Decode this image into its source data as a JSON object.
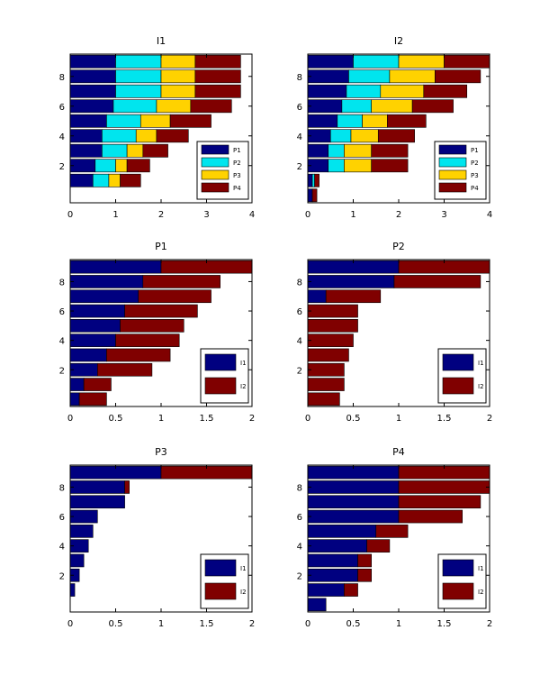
{
  "colors": {
    "P1": "#000080",
    "P2": "#00e5ee",
    "P3": "#ffd200",
    "P4": "#800000",
    "I1": "#000080",
    "I2": "#800000"
  },
  "chart_data": [
    {
      "type": "bar",
      "orientation": "horizontal",
      "stacked": true,
      "title": "I1",
      "categories": [
        0,
        1,
        2,
        3,
        4,
        5,
        6,
        7,
        8,
        9
      ],
      "series": [
        {
          "name": "P1",
          "values": [
            0.0,
            0.5,
            0.55,
            0.7,
            0.7,
            0.8,
            0.95,
            1.0,
            1.0,
            1.0
          ]
        },
        {
          "name": "P2",
          "values": [
            0.0,
            0.35,
            0.45,
            0.55,
            0.75,
            0.75,
            0.95,
            1.0,
            1.0,
            1.0
          ]
        },
        {
          "name": "P3",
          "values": [
            0.0,
            0.25,
            0.25,
            0.35,
            0.45,
            0.65,
            0.75,
            0.75,
            0.75,
            0.75
          ]
        },
        {
          "name": "P4",
          "values": [
            0.0,
            0.45,
            0.5,
            0.55,
            0.7,
            0.9,
            0.9,
            1.0,
            1.0,
            1.0
          ]
        }
      ],
      "xlim": [
        0,
        4
      ],
      "xticks": [
        "0",
        "1",
        "2",
        "3",
        "4"
      ],
      "ylim": [
        -0.5,
        9.5
      ],
      "yticks": [
        "2",
        "4",
        "6",
        "8"
      ],
      "legend": {
        "position": "bottom-right",
        "entries": [
          "P1",
          "P2",
          "P3",
          "P4"
        ]
      }
    },
    {
      "type": "bar",
      "orientation": "horizontal",
      "stacked": true,
      "title": "I2",
      "categories": [
        0,
        1,
        2,
        3,
        4,
        5,
        6,
        7,
        8,
        9
      ],
      "series": [
        {
          "name": "P1",
          "values": [
            0.1,
            0.1,
            0.45,
            0.45,
            0.5,
            0.65,
            0.75,
            0.85,
            0.9,
            1.0
          ]
        },
        {
          "name": "P2",
          "values": [
            0.0,
            0.05,
            0.35,
            0.35,
            0.45,
            0.55,
            0.65,
            0.75,
            0.9,
            1.0
          ]
        },
        {
          "name": "P3",
          "values": [
            0.0,
            0.0,
            0.6,
            0.6,
            0.6,
            0.55,
            0.9,
            0.95,
            1.0,
            1.0
          ]
        },
        {
          "name": "P4",
          "values": [
            0.1,
            0.1,
            0.8,
            0.8,
            0.8,
            0.85,
            0.9,
            0.95,
            1.0,
            1.0
          ]
        }
      ],
      "xlim": [
        0,
        4
      ],
      "xticks": [
        "0",
        "1",
        "2",
        "3",
        "4"
      ],
      "ylim": [
        -0.5,
        9.5
      ],
      "yticks": [
        "2",
        "4",
        "6",
        "8"
      ],
      "legend": {
        "position": "bottom-right",
        "entries": [
          "P1",
          "P2",
          "P3",
          "P4"
        ]
      }
    },
    {
      "type": "bar",
      "orientation": "horizontal",
      "stacked": true,
      "title": "P1",
      "categories": [
        0,
        1,
        2,
        3,
        4,
        5,
        6,
        7,
        8,
        9
      ],
      "series": [
        {
          "name": "I1",
          "values": [
            0.1,
            0.15,
            0.3,
            0.4,
            0.5,
            0.55,
            0.6,
            0.75,
            0.8,
            1.0
          ]
        },
        {
          "name": "I2",
          "values": [
            0.3,
            0.3,
            0.6,
            0.7,
            0.7,
            0.7,
            0.8,
            0.8,
            0.85,
            1.0
          ]
        }
      ],
      "xlim": [
        0,
        2
      ],
      "xticks": [
        "0",
        "0.5",
        "1",
        "1.5",
        "2"
      ],
      "ylim": [
        -0.5,
        9.5
      ],
      "yticks": [
        "2",
        "4",
        "6",
        "8"
      ],
      "legend": {
        "position": "bottom-right",
        "entries": [
          "I1",
          "I2"
        ]
      }
    },
    {
      "type": "bar",
      "orientation": "horizontal",
      "stacked": true,
      "title": "P2",
      "categories": [
        0,
        1,
        2,
        3,
        4,
        5,
        6,
        7,
        8,
        9
      ],
      "series": [
        {
          "name": "I1",
          "values": [
            0.0,
            0.0,
            0.0,
            0.0,
            0.0,
            0.0,
            0.0,
            0.2,
            0.95,
            1.0
          ]
        },
        {
          "name": "I2",
          "values": [
            0.35,
            0.4,
            0.4,
            0.45,
            0.5,
            0.55,
            0.55,
            0.6,
            0.95,
            1.0
          ]
        }
      ],
      "xlim": [
        0,
        2
      ],
      "xticks": [
        "0",
        "0.5",
        "1",
        "1.5",
        "2"
      ],
      "ylim": [
        -0.5,
        9.5
      ],
      "yticks": [
        "2",
        "4",
        "6",
        "8"
      ],
      "legend": {
        "position": "bottom-right",
        "entries": [
          "I1",
          "I2"
        ]
      }
    },
    {
      "type": "bar",
      "orientation": "horizontal",
      "stacked": true,
      "title": "P3",
      "categories": [
        0,
        1,
        2,
        3,
        4,
        5,
        6,
        7,
        8,
        9
      ],
      "series": [
        {
          "name": "I1",
          "values": [
            0.0,
            0.05,
            0.1,
            0.15,
            0.2,
            0.25,
            0.3,
            0.6,
            0.6,
            1.0
          ]
        },
        {
          "name": "I2",
          "values": [
            0.0,
            0.0,
            0.0,
            0.0,
            0.0,
            0.0,
            0.0,
            0.0,
            0.05,
            1.0
          ]
        }
      ],
      "xlim": [
        0,
        2
      ],
      "xticks": [
        "0",
        "0.5",
        "1",
        "1.5",
        "2"
      ],
      "ylim": [
        -0.5,
        9.5
      ],
      "yticks": [
        "2",
        "4",
        "6",
        "8"
      ],
      "legend": {
        "position": "bottom-right",
        "entries": [
          "I1",
          "I2"
        ]
      }
    },
    {
      "type": "bar",
      "orientation": "horizontal",
      "stacked": true,
      "title": "P4",
      "categories": [
        0,
        1,
        2,
        3,
        4,
        5,
        6,
        7,
        8,
        9
      ],
      "series": [
        {
          "name": "I1",
          "values": [
            0.2,
            0.4,
            0.55,
            0.55,
            0.65,
            0.75,
            1.0,
            1.0,
            1.0,
            1.0
          ]
        },
        {
          "name": "I2",
          "values": [
            0.0,
            0.15,
            0.15,
            0.15,
            0.25,
            0.35,
            0.7,
            0.9,
            1.0,
            1.0
          ]
        }
      ],
      "xlim": [
        0,
        2
      ],
      "xticks": [
        "0",
        "0.5",
        "1",
        "1.5",
        "2"
      ],
      "ylim": [
        -0.5,
        9.5
      ],
      "yticks": [
        "2",
        "4",
        "6",
        "8"
      ],
      "legend": {
        "position": "bottom-right",
        "entries": [
          "I1",
          "I2"
        ]
      }
    }
  ]
}
